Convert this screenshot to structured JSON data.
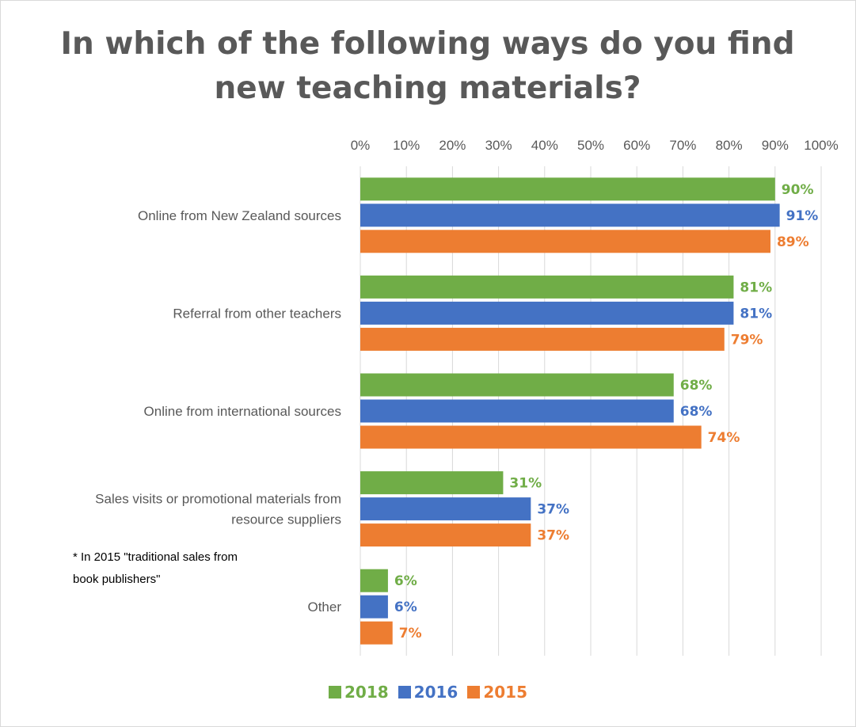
{
  "title_lines": [
    "In which of the following ways do you find",
    "new teaching materials?"
  ],
  "note_lines": [
    "* In 2015 \"traditional sales from",
    "book publishers\""
  ],
  "chart_data": {
    "type": "bar",
    "orientation": "horizontal",
    "title": "In which of the following ways do you find new teaching materials?",
    "categories": [
      [
        "Online from New Zealand sources"
      ],
      [
        "Referral from other teachers"
      ],
      [
        "Online from international sources"
      ],
      [
        "Sales visits or promotional materials from",
        "resource suppliers"
      ],
      [
        "Other"
      ]
    ],
    "series": [
      {
        "name": "2018",
        "color": "#70ad47",
        "values": [
          90,
          81,
          68,
          31,
          6
        ]
      },
      {
        "name": "2016",
        "color": "#4472c4",
        "values": [
          91,
          81,
          68,
          37,
          6
        ]
      },
      {
        "name": "2015",
        "color": "#ed7d31",
        "values": [
          89,
          79,
          74,
          37,
          7
        ]
      }
    ],
    "xlim": [
      0,
      100
    ],
    "xticks": [
      "0%",
      "10%",
      "20%",
      "30%",
      "40%",
      "50%",
      "60%",
      "70%",
      "80%",
      "90%",
      "100%"
    ],
    "x_axis_position": "top",
    "value_suffix": "%",
    "grid": true,
    "legend_position": "bottom"
  }
}
